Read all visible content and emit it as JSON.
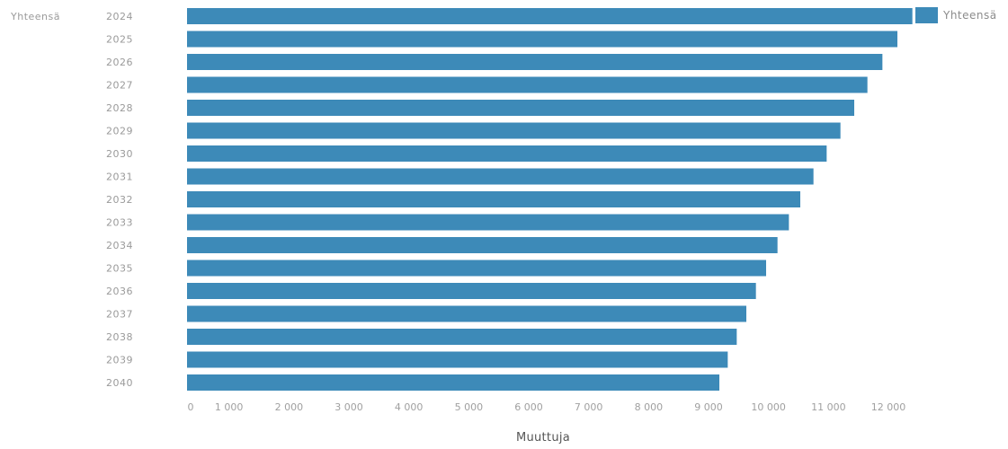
{
  "chart_data": {
    "type": "bar",
    "orientation": "horizontal",
    "group_label": "Yhteensä",
    "categories": [
      "2024",
      "2025",
      "2026",
      "2027",
      "2028",
      "2029",
      "2030",
      "2031",
      "2032",
      "2033",
      "2034",
      "2035",
      "2036",
      "2037",
      "2038",
      "2039",
      "2040"
    ],
    "series": [
      {
        "name": "Yhteensä",
        "color": "#3d8ab8",
        "values": [
          12100,
          11850,
          11600,
          11350,
          11130,
          10900,
          10670,
          10450,
          10230,
          10040,
          9850,
          9660,
          9490,
          9330,
          9170,
          9020,
          8880
        ]
      }
    ],
    "xlabel": "Muuttuja",
    "xlim": [
      0,
      12000
    ],
    "xticks": [
      "0",
      "1 000",
      "2 000",
      "3 000",
      "4 000",
      "5 000",
      "6 000",
      "7 000",
      "8 000",
      "9 000",
      "10 000",
      "11 000",
      "12 000"
    ],
    "grid": false,
    "legend_position": "top-right"
  }
}
